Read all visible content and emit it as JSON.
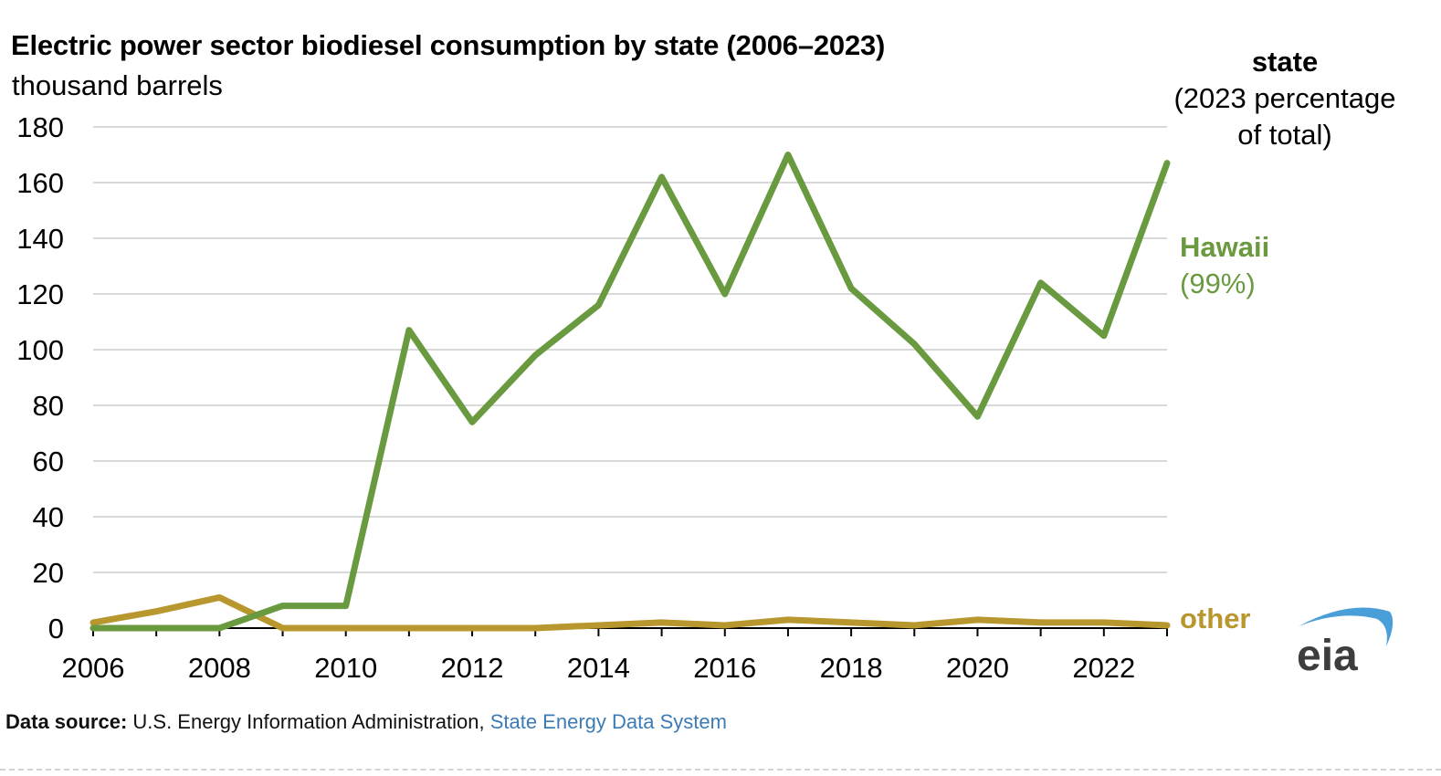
{
  "chart_data": {
    "type": "line",
    "title": "Electric power sector biodiesel consumption by state (2006–2023)",
    "ylabel": "thousand barrels",
    "xlabel": "",
    "x": [
      2006,
      2007,
      2008,
      2009,
      2010,
      2011,
      2012,
      2013,
      2014,
      2015,
      2016,
      2017,
      2018,
      2019,
      2020,
      2021,
      2022,
      2023
    ],
    "x_tick_labels": [
      "2006",
      "2008",
      "2010",
      "2012",
      "2014",
      "2016",
      "2018",
      "2020",
      "2022"
    ],
    "y_tick_labels": [
      "0",
      "20",
      "40",
      "60",
      "80",
      "100",
      "120",
      "140",
      "160",
      "180"
    ],
    "ylim": [
      0,
      180
    ],
    "grid": true,
    "legend_title": "state",
    "legend_subtitle": "(2023 percentage",
    "legend_subtitle2": "of total)",
    "series": [
      {
        "name": "Hawaii",
        "share_label": "(99%)",
        "color": "#6a9a40",
        "values": [
          0,
          0,
          0,
          8,
          8,
          107,
          74,
          98,
          116,
          162,
          120,
          170,
          122,
          102,
          76,
          124,
          105,
          167
        ]
      },
      {
        "name": "other",
        "share_label": "",
        "color": "#b9972f",
        "values": [
          2,
          6,
          11,
          0,
          0,
          0,
          0,
          0,
          1,
          2,
          1,
          3,
          2,
          1,
          3,
          2,
          2,
          1
        ]
      }
    ]
  },
  "footer": {
    "source_label": "Data source:",
    "source_text": "U.S. Energy Information Administration,",
    "source_link": "State Energy Data System"
  },
  "logo": {
    "text": "eia",
    "arc_color": "#4a9fd8",
    "text_color": "#3d3d3d"
  }
}
